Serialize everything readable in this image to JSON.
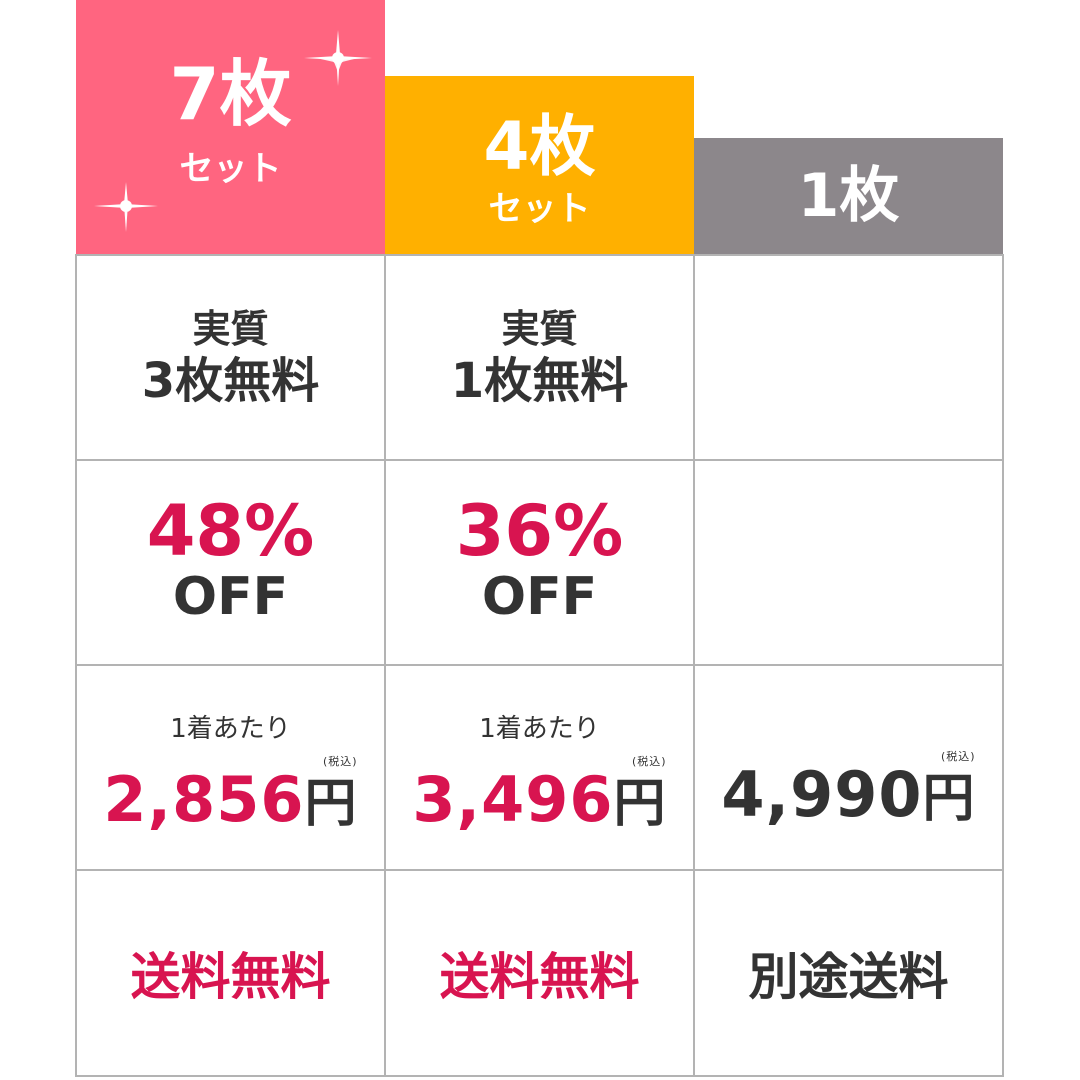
{
  "columns": [
    {
      "header": {
        "title": "7枚",
        "subtitle": "セット"
      },
      "free": {
        "line1": "実質",
        "line2": "3枚無料"
      },
      "discount": {
        "percent": "48%",
        "off": "OFF"
      },
      "price": {
        "caption": "1着あたり",
        "amount": "2,856",
        "unit": "円",
        "tax": "(税込)"
      },
      "shipping": "送料無料"
    },
    {
      "header": {
        "title": "4枚",
        "subtitle": "セット"
      },
      "free": {
        "line1": "実質",
        "line2": "1枚無料"
      },
      "discount": {
        "percent": "36%",
        "off": "OFF"
      },
      "price": {
        "caption": "1着あたり",
        "amount": "3,496",
        "unit": "円",
        "tax": "(税込)"
      },
      "shipping": "送料無料"
    },
    {
      "header": {
        "title": "1枚"
      },
      "price": {
        "amount": "4,990",
        "unit": "円",
        "tax": "(税込)"
      },
      "shipping": "別途送料"
    }
  ]
}
